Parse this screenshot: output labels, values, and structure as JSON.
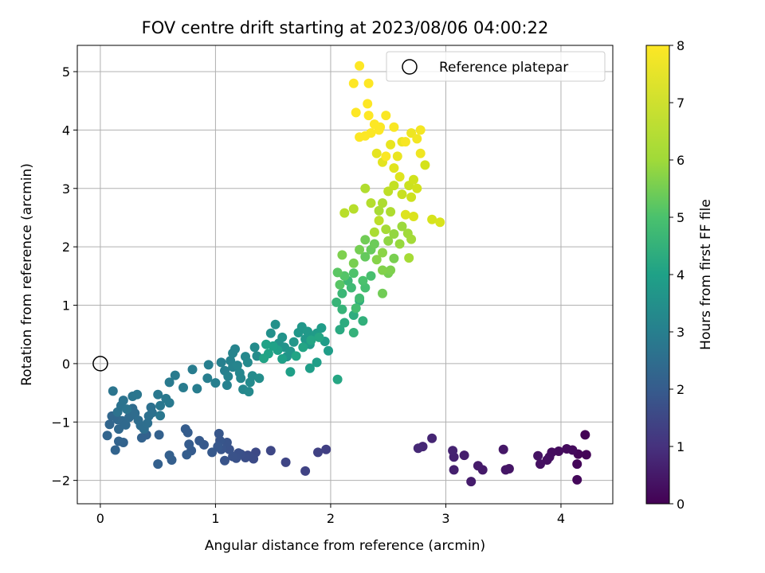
{
  "chart_data": {
    "type": "scatter",
    "title": "FOV centre drift starting at 2023/08/06 04:00:22",
    "xlabel": "Angular distance from reference (arcmin)",
    "ylabel": "Rotation from reference (arcmin)",
    "xlim": [
      -0.2,
      4.45
    ],
    "ylim": [
      -2.4,
      5.45
    ],
    "xticks": [
      0,
      1,
      2,
      3,
      4
    ],
    "yticks": [
      -2,
      -1,
      0,
      1,
      2,
      3,
      4,
      5
    ],
    "grid": true,
    "legend": {
      "placement": "top-right",
      "entries": [
        "Reference platepar"
      ]
    },
    "reference_point": {
      "x": 0,
      "y": 0,
      "name": "Reference platepar"
    },
    "colorbar": {
      "label": "Hours from first FF file",
      "range": [
        0,
        8
      ],
      "ticks": [
        0,
        1,
        2,
        3,
        4,
        5,
        6,
        7,
        8
      ],
      "colormap": "viridis"
    },
    "point_columns": [
      "x",
      "y",
      "hours"
    ],
    "points": [
      [
        4.21,
        -1.22,
        0.05
      ],
      [
        4.22,
        -1.56,
        0.08
      ],
      [
        4.15,
        -1.55,
        0.1
      ],
      [
        4.14,
        -1.72,
        0.12
      ],
      [
        4.14,
        -1.99,
        0.15
      ],
      [
        4.1,
        -1.48,
        0.18
      ],
      [
        4.05,
        -1.46,
        0.2
      ],
      [
        3.98,
        -1.5,
        0.22
      ],
      [
        3.92,
        -1.52,
        0.25
      ],
      [
        3.9,
        -1.6,
        0.28
      ],
      [
        3.88,
        -1.65,
        0.3
      ],
      [
        3.82,
        -1.72,
        0.33
      ],
      [
        3.8,
        -1.58,
        0.36
      ],
      [
        3.55,
        -1.8,
        0.4
      ],
      [
        3.52,
        -1.82,
        0.43
      ],
      [
        3.5,
        -1.47,
        0.46
      ],
      [
        3.32,
        -1.82,
        0.5
      ],
      [
        3.28,
        -1.75,
        0.53
      ],
      [
        3.22,
        -2.02,
        0.56
      ],
      [
        3.16,
        -1.57,
        0.6
      ],
      [
        3.07,
        -1.82,
        0.63
      ],
      [
        3.07,
        -1.6,
        0.66
      ],
      [
        3.06,
        -1.49,
        0.7
      ],
      [
        2.88,
        -1.28,
        0.74
      ],
      [
        2.8,
        -1.42,
        0.78
      ],
      [
        2.76,
        -1.45,
        0.82
      ],
      [
        1.96,
        -1.47,
        1.3
      ],
      [
        1.89,
        -1.52,
        1.35
      ],
      [
        1.78,
        -1.84,
        1.4
      ],
      [
        1.61,
        -1.69,
        1.45
      ],
      [
        1.48,
        -1.49,
        1.5
      ],
      [
        1.35,
        -1.52,
        1.55
      ],
      [
        1.33,
        -1.63,
        1.6
      ],
      [
        1.28,
        -1.57,
        1.63
      ],
      [
        1.26,
        -1.61,
        1.66
      ],
      [
        1.22,
        -1.55,
        1.7
      ],
      [
        1.2,
        -1.53,
        1.72
      ],
      [
        1.18,
        -1.62,
        1.74
      ],
      [
        1.15,
        -1.59,
        1.76
      ],
      [
        1.12,
        -1.47,
        1.78
      ],
      [
        1.1,
        -1.35,
        1.8
      ],
      [
        1.08,
        -1.66,
        1.82
      ],
      [
        1.05,
        -1.47,
        1.84
      ],
      [
        1.04,
        -1.32,
        1.86
      ],
      [
        1.03,
        -1.2,
        1.88
      ],
      [
        1.02,
        -1.42,
        1.9
      ],
      [
        0.97,
        -1.52,
        1.92
      ],
      [
        0.9,
        -1.39,
        1.94
      ],
      [
        0.86,
        -1.32,
        1.96
      ],
      [
        0.79,
        -1.49,
        1.98
      ],
      [
        0.77,
        -1.38,
        2.0
      ],
      [
        0.76,
        -1.18,
        2.02
      ],
      [
        0.74,
        -1.12,
        2.04
      ],
      [
        0.75,
        -1.56,
        2.06
      ],
      [
        0.62,
        -1.65,
        2.08
      ],
      [
        0.6,
        -1.57,
        2.1
      ],
      [
        0.5,
        -1.72,
        2.12
      ],
      [
        0.51,
        -1.22,
        2.14
      ],
      [
        0.4,
        -1.22,
        2.16
      ],
      [
        0.36,
        -1.27,
        2.18
      ],
      [
        0.2,
        -1.35,
        2.2
      ],
      [
        0.16,
        -1.33,
        2.22
      ],
      [
        0.13,
        -1.48,
        2.24
      ],
      [
        0.06,
        -1.23,
        2.26
      ],
      [
        0.08,
        -1.04,
        2.28
      ],
      [
        0.1,
        -0.9,
        2.3
      ],
      [
        0.15,
        -0.96,
        2.32
      ],
      [
        0.16,
        -1.12,
        2.34
      ],
      [
        0.19,
        -0.98,
        2.36
      ],
      [
        0.22,
        -1.05,
        2.38
      ],
      [
        0.25,
        -0.92,
        2.4
      ],
      [
        0.27,
        -0.88,
        2.42
      ],
      [
        0.28,
        -0.77,
        2.44
      ],
      [
        0.3,
        -0.85,
        2.46
      ],
      [
        0.33,
        -0.97,
        2.48
      ],
      [
        0.35,
        -1.06,
        2.5
      ],
      [
        0.38,
        -1.12,
        2.52
      ],
      [
        0.41,
        -1.02,
        2.54
      ],
      [
        0.42,
        -0.9,
        2.56
      ],
      [
        0.44,
        -0.75,
        2.58
      ],
      [
        0.45,
        -0.84,
        2.6
      ],
      [
        0.15,
        -0.83,
        2.62
      ],
      [
        0.18,
        -0.72,
        2.64
      ],
      [
        0.2,
        -0.63,
        2.66
      ],
      [
        0.23,
        -0.78,
        2.68
      ],
      [
        0.11,
        -0.47,
        2.7
      ],
      [
        0.28,
        -0.56,
        2.72
      ],
      [
        0.32,
        -0.53,
        2.74
      ],
      [
        0.52,
        -0.89,
        2.76
      ],
      [
        0.52,
        -0.72,
        2.78
      ],
      [
        0.5,
        -0.53,
        2.8
      ],
      [
        0.57,
        -0.6,
        2.82
      ],
      [
        0.6,
        -0.67,
        2.84
      ],
      [
        0.6,
        -0.32,
        2.86
      ],
      [
        0.65,
        -0.2,
        2.88
      ],
      [
        0.72,
        -0.41,
        2.9
      ],
      [
        0.8,
        -0.1,
        2.92
      ],
      [
        0.84,
        -0.43,
        2.94
      ],
      [
        0.93,
        -0.25,
        2.96
      ],
      [
        0.94,
        -0.02,
        2.98
      ],
      [
        1.0,
        -0.33,
        3.0
      ],
      [
        1.05,
        0.02,
        3.02
      ],
      [
        1.08,
        -0.12,
        3.04
      ],
      [
        1.1,
        -0.37,
        3.06
      ],
      [
        1.11,
        -0.22,
        3.08
      ],
      [
        1.13,
        0.05,
        3.1
      ],
      [
        1.15,
        -0.06,
        3.12
      ],
      [
        1.15,
        0.18,
        3.14
      ],
      [
        1.17,
        0.25,
        3.16
      ],
      [
        1.19,
        -0.03,
        3.18
      ],
      [
        1.21,
        -0.16,
        3.2
      ],
      [
        1.22,
        -0.25,
        3.22
      ],
      [
        1.24,
        -0.44,
        3.24
      ],
      [
        1.26,
        0.12,
        3.26
      ],
      [
        1.28,
        0.02,
        3.28
      ],
      [
        1.29,
        -0.48,
        3.3
      ],
      [
        1.3,
        -0.32,
        3.32
      ],
      [
        1.32,
        -0.21,
        3.34
      ],
      [
        1.34,
        0.28,
        3.36
      ],
      [
        1.36,
        0.13,
        3.38
      ],
      [
        1.38,
        -0.25,
        3.4
      ],
      [
        1.48,
        0.52,
        3.5
      ],
      [
        1.52,
        0.67,
        3.52
      ],
      [
        1.55,
        0.35,
        3.55
      ],
      [
        1.58,
        0.45,
        3.58
      ],
      [
        1.6,
        0.28,
        3.6
      ],
      [
        1.62,
        0.12,
        3.62
      ],
      [
        1.65,
        0.21,
        3.65
      ],
      [
        1.68,
        0.37,
        3.68
      ],
      [
        1.72,
        0.53,
        3.7
      ],
      [
        1.75,
        0.63,
        3.72
      ],
      [
        1.78,
        0.42,
        3.74
      ],
      [
        1.8,
        0.55,
        3.76
      ],
      [
        1.82,
        0.33,
        3.78
      ],
      [
        1.85,
        0.46,
        3.8
      ],
      [
        1.88,
        0.52,
        3.82
      ],
      [
        1.92,
        0.61,
        3.84
      ],
      [
        1.95,
        0.38,
        3.86
      ],
      [
        1.98,
        0.22,
        3.88
      ],
      [
        1.88,
        0.02,
        3.9
      ],
      [
        1.82,
        -0.08,
        3.92
      ],
      [
        1.65,
        -0.14,
        3.94
      ],
      [
        1.58,
        0.08,
        3.96
      ],
      [
        1.54,
        0.23,
        3.98
      ],
      [
        1.5,
        0.3,
        4.0
      ],
      [
        1.46,
        0.17,
        4.02
      ],
      [
        1.44,
        0.33,
        4.04
      ],
      [
        1.42,
        0.09,
        4.06
      ],
      [
        1.7,
        0.13,
        4.08
      ],
      [
        1.76,
        0.28,
        4.1
      ],
      [
        1.83,
        0.4,
        4.12
      ],
      [
        1.9,
        0.45,
        4.14
      ],
      [
        2.06,
        -0.27,
        4.16
      ],
      [
        2.08,
        0.58,
        4.25
      ],
      [
        2.12,
        0.7,
        4.3
      ],
      [
        2.2,
        0.83,
        4.35
      ],
      [
        2.25,
        1.08,
        4.4
      ],
      [
        2.28,
        0.73,
        4.45
      ],
      [
        2.2,
        0.53,
        4.5
      ],
      [
        2.1,
        0.93,
        4.55
      ],
      [
        2.05,
        1.05,
        4.6
      ],
      [
        2.1,
        1.2,
        4.65
      ],
      [
        2.15,
        1.42,
        4.7
      ],
      [
        2.18,
        1.3,
        4.75
      ],
      [
        2.25,
        1.12,
        4.8
      ],
      [
        2.22,
        0.95,
        4.85
      ],
      [
        2.3,
        1.3,
        4.9
      ],
      [
        2.35,
        1.5,
        4.95
      ],
      [
        2.28,
        1.42,
        5.0
      ],
      [
        2.2,
        1.55,
        5.05
      ],
      [
        2.12,
        1.5,
        5.1
      ],
      [
        2.08,
        1.35,
        5.15
      ],
      [
        2.06,
        1.56,
        5.2
      ],
      [
        2.3,
        1.83,
        5.3
      ],
      [
        2.35,
        1.95,
        5.35
      ],
      [
        2.38,
        2.05,
        5.4
      ],
      [
        2.3,
        2.12,
        5.45
      ],
      [
        2.25,
        1.95,
        5.5
      ],
      [
        2.2,
        1.72,
        5.55
      ],
      [
        2.1,
        1.86,
        5.6
      ],
      [
        2.45,
        1.2,
        5.45
      ],
      [
        2.5,
        1.55,
        5.5
      ],
      [
        2.55,
        1.8,
        5.55
      ],
      [
        2.52,
        1.6,
        5.6
      ],
      [
        2.45,
        1.6,
        5.65
      ],
      [
        2.4,
        1.78,
        5.7
      ],
      [
        2.45,
        1.9,
        5.75
      ],
      [
        2.5,
        2.1,
        5.8
      ],
      [
        2.55,
        2.22,
        5.85
      ],
      [
        2.6,
        2.05,
        5.9
      ],
      [
        2.62,
        2.35,
        5.95
      ],
      [
        2.67,
        2.23,
        6.0
      ],
      [
        2.7,
        2.13,
        6.05
      ],
      [
        2.68,
        1.81,
        6.1
      ],
      [
        2.48,
        2.3,
        6.1
      ],
      [
        2.42,
        2.62,
        6.15
      ],
      [
        2.38,
        2.25,
        6.2
      ],
      [
        2.45,
        2.75,
        6.25
      ],
      [
        2.52,
        2.6,
        6.3
      ],
      [
        2.3,
        3.0,
        6.35
      ],
      [
        2.35,
        2.75,
        6.4
      ],
      [
        2.2,
        2.65,
        6.45
      ],
      [
        2.12,
        2.58,
        6.5
      ],
      [
        2.42,
        2.45,
        6.55
      ],
      [
        2.5,
        2.95,
        6.6
      ],
      [
        2.55,
        3.05,
        6.7
      ],
      [
        2.62,
        2.9,
        6.8
      ],
      [
        2.68,
        3.05,
        6.85
      ],
      [
        2.7,
        2.85,
        6.9
      ],
      [
        2.72,
        3.15,
        6.95
      ],
      [
        2.75,
        3.0,
        7.0
      ],
      [
        2.82,
        3.4,
        7.05
      ],
      [
        2.88,
        2.47,
        7.1
      ],
      [
        2.95,
        2.42,
        7.15
      ],
      [
        2.72,
        2.52,
        7.2
      ],
      [
        2.65,
        2.55,
        7.25
      ],
      [
        2.6,
        3.2,
        7.3
      ],
      [
        2.55,
        3.35,
        7.35
      ],
      [
        2.45,
        3.45,
        7.4
      ],
      [
        2.4,
        3.6,
        7.45
      ],
      [
        2.52,
        3.75,
        7.5
      ],
      [
        2.58,
        3.55,
        7.55
      ],
      [
        2.62,
        3.8,
        7.6
      ],
      [
        2.7,
        3.95,
        7.65
      ],
      [
        2.78,
        3.6,
        7.7
      ],
      [
        2.75,
        3.85,
        7.75
      ],
      [
        2.78,
        4.0,
        7.8
      ],
      [
        2.65,
        3.8,
        7.85
      ],
      [
        2.55,
        4.05,
        7.9
      ],
      [
        2.48,
        4.25,
        7.92
      ],
      [
        2.43,
        4.05,
        7.94
      ],
      [
        2.35,
        3.95,
        7.96
      ],
      [
        2.3,
        3.9,
        7.97
      ],
      [
        2.25,
        3.88,
        7.98
      ],
      [
        2.32,
        4.45,
        7.99
      ],
      [
        2.33,
        4.25,
        7.99
      ],
      [
        2.22,
        4.3,
        8.0
      ],
      [
        2.25,
        5.1,
        8.0
      ],
      [
        2.2,
        4.8,
        8.0
      ],
      [
        2.33,
        4.8,
        8.0
      ],
      [
        2.38,
        4.1,
        7.99
      ],
      [
        2.42,
        4.0,
        7.98
      ],
      [
        2.48,
        3.55,
        7.95
      ]
    ]
  }
}
